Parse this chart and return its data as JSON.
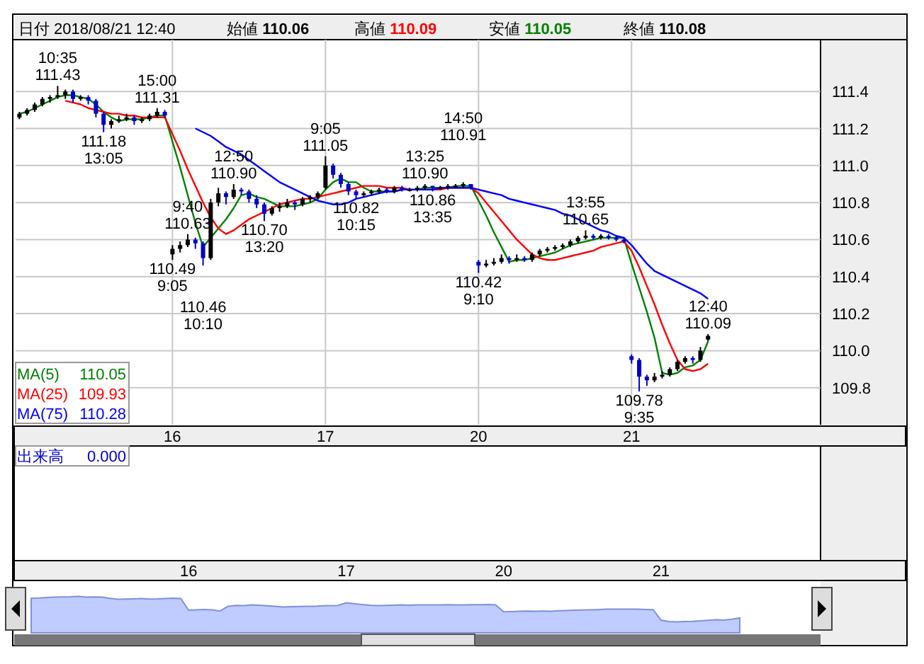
{
  "chart_data": {
    "type": "candlestick",
    "title": "日付 2018/08/21 12:40",
    "categories": [
      null,
      null,
      null,
      null,
      null,
      null,
      null,
      null,
      null,
      null,
      null,
      null,
      null,
      null,
      null,
      null,
      null,
      null,
      null,
      null,
      "16",
      null,
      null,
      null,
      null,
      null,
      null,
      null,
      null,
      null,
      null,
      null,
      null,
      null,
      null,
      null,
      null,
      null,
      null,
      null,
      "17",
      null,
      null,
      null,
      null,
      null,
      null,
      null,
      null,
      null,
      null,
      null,
      null,
      null,
      null,
      null,
      null,
      null,
      null,
      null,
      "20",
      null,
      null,
      null,
      null,
      null,
      null,
      null,
      null,
      null,
      null,
      null,
      null,
      null,
      null,
      null,
      null,
      null,
      null,
      null,
      "21",
      null,
      null,
      null,
      null,
      null,
      null,
      null,
      null,
      null,
      null
    ],
    "ohlc": [
      [
        111.26,
        111.29,
        111.25,
        111.28
      ],
      [
        111.28,
        111.31,
        111.27,
        111.3
      ],
      [
        111.3,
        111.34,
        111.29,
        111.33
      ],
      [
        111.33,
        111.37,
        111.32,
        111.36
      ],
      [
        111.36,
        111.38,
        111.34,
        111.37
      ],
      [
        111.37,
        111.43,
        111.36,
        111.38
      ],
      [
        111.38,
        111.41,
        111.36,
        111.4
      ],
      [
        111.4,
        111.41,
        111.34,
        111.36
      ],
      [
        111.36,
        111.38,
        111.35,
        111.37
      ],
      [
        111.37,
        111.38,
        111.33,
        111.35
      ],
      [
        111.35,
        111.36,
        111.26,
        111.28
      ],
      [
        111.28,
        111.29,
        111.18,
        111.22
      ],
      [
        111.22,
        111.25,
        111.2,
        111.24
      ],
      [
        111.24,
        111.27,
        111.23,
        111.25
      ],
      [
        111.25,
        111.28,
        111.24,
        111.26
      ],
      [
        111.26,
        111.27,
        111.22,
        111.24
      ],
      [
        111.24,
        111.26,
        111.23,
        111.25
      ],
      [
        111.25,
        111.28,
        111.24,
        111.27
      ],
      [
        111.27,
        111.31,
        111.26,
        111.29
      ],
      [
        111.29,
        111.3,
        111.26,
        111.27
      ],
      [
        110.52,
        110.57,
        110.49,
        110.55
      ],
      [
        110.55,
        110.59,
        110.53,
        110.57
      ],
      [
        110.57,
        110.63,
        110.56,
        110.6
      ],
      [
        110.6,
        110.61,
        110.55,
        110.58
      ],
      [
        110.58,
        110.59,
        110.46,
        110.5
      ],
      [
        110.5,
        110.82,
        110.49,
        110.8
      ],
      [
        110.8,
        110.88,
        110.78,
        110.85
      ],
      [
        110.85,
        110.86,
        110.79,
        110.83
      ],
      [
        110.83,
        110.9,
        110.82,
        110.87
      ],
      [
        110.87,
        110.88,
        110.84,
        110.86
      ],
      [
        110.86,
        110.87,
        110.8,
        110.82
      ],
      [
        110.82,
        110.84,
        110.77,
        110.79
      ],
      [
        110.79,
        110.8,
        110.7,
        110.74
      ],
      [
        110.74,
        110.78,
        110.73,
        110.77
      ],
      [
        110.77,
        110.8,
        110.75,
        110.78
      ],
      [
        110.78,
        110.82,
        110.77,
        110.8
      ],
      [
        110.8,
        110.81,
        110.76,
        110.79
      ],
      [
        110.79,
        110.83,
        110.78,
        110.82
      ],
      [
        110.82,
        110.84,
        110.8,
        110.83
      ],
      [
        110.83,
        110.86,
        110.82,
        110.85
      ],
      [
        110.88,
        111.05,
        110.87,
        111.0
      ],
      [
        111.0,
        111.01,
        110.93,
        110.95
      ],
      [
        110.95,
        110.96,
        110.88,
        110.9
      ],
      [
        110.9,
        110.91,
        110.84,
        110.86
      ],
      [
        110.86,
        110.87,
        110.82,
        110.84
      ],
      [
        110.84,
        110.86,
        110.83,
        110.85
      ],
      [
        110.85,
        110.87,
        110.84,
        110.86
      ],
      [
        110.86,
        110.88,
        110.85,
        110.87
      ],
      [
        110.87,
        110.88,
        110.85,
        110.86
      ],
      [
        110.86,
        110.89,
        110.85,
        110.88
      ],
      [
        110.88,
        110.89,
        110.86,
        110.87
      ],
      [
        110.87,
        110.88,
        110.86,
        110.87
      ],
      [
        110.87,
        110.89,
        110.86,
        110.88
      ],
      [
        110.88,
        110.9,
        110.87,
        110.89
      ],
      [
        110.89,
        110.89,
        110.86,
        110.88
      ],
      [
        110.88,
        110.89,
        110.87,
        110.88
      ],
      [
        110.88,
        110.9,
        110.87,
        110.89
      ],
      [
        110.89,
        110.9,
        110.88,
        110.89
      ],
      [
        110.89,
        110.91,
        110.88,
        110.9
      ],
      [
        110.9,
        110.9,
        110.87,
        110.88
      ],
      [
        110.48,
        110.49,
        110.42,
        110.46
      ],
      [
        110.46,
        110.49,
        110.45,
        110.47
      ],
      [
        110.47,
        110.5,
        110.46,
        110.48
      ],
      [
        110.48,
        110.52,
        110.47,
        110.5
      ],
      [
        110.5,
        110.51,
        110.47,
        110.49
      ],
      [
        110.49,
        110.52,
        110.48,
        110.5
      ],
      [
        110.5,
        110.51,
        110.48,
        110.49
      ],
      [
        110.49,
        110.53,
        110.48,
        110.52
      ],
      [
        110.52,
        110.55,
        110.51,
        110.54
      ],
      [
        110.54,
        110.56,
        110.53,
        110.55
      ],
      [
        110.55,
        110.57,
        110.54,
        110.56
      ],
      [
        110.56,
        110.58,
        110.55,
        110.57
      ],
      [
        110.57,
        110.6,
        110.56,
        110.59
      ],
      [
        110.59,
        110.62,
        110.58,
        110.61
      ],
      [
        110.61,
        110.65,
        110.6,
        110.62
      ],
      [
        110.62,
        110.63,
        110.6,
        110.61
      ],
      [
        110.61,
        110.63,
        110.6,
        110.62
      ],
      [
        110.62,
        110.63,
        110.6,
        110.61
      ],
      [
        110.61,
        110.62,
        110.59,
        110.6
      ],
      [
        110.6,
        110.61,
        110.58,
        110.59
      ],
      [
        109.97,
        109.98,
        109.93,
        109.95
      ],
      [
        109.95,
        109.96,
        109.78,
        109.86
      ],
      [
        109.86,
        109.87,
        109.81,
        109.84
      ],
      [
        109.84,
        109.88,
        109.83,
        109.86
      ],
      [
        109.86,
        109.89,
        109.85,
        109.87
      ],
      [
        109.87,
        109.91,
        109.86,
        109.9
      ],
      [
        109.9,
        109.95,
        109.89,
        109.94
      ],
      [
        109.94,
        109.97,
        109.93,
        109.96
      ],
      [
        109.96,
        109.97,
        109.93,
        109.95
      ],
      [
        109.95,
        110.02,
        109.94,
        110.0
      ],
      [
        110.06,
        110.09,
        110.05,
        110.08
      ]
    ],
    "series": [
      {
        "name": "MA(5)",
        "type": "line",
        "color": "#008000",
        "values": [
          111.28,
          111.29,
          111.31,
          111.33,
          111.35,
          111.37,
          111.38,
          111.38,
          111.37,
          111.36,
          111.33,
          111.29,
          111.26,
          111.24,
          111.25,
          111.25,
          111.25,
          111.26,
          111.27,
          111.27,
          111.13,
          110.99,
          110.84,
          110.69,
          110.56,
          110.61,
          110.66,
          110.71,
          110.77,
          110.84,
          110.85,
          110.83,
          110.82,
          110.8,
          110.78,
          110.78,
          110.78,
          110.79,
          110.8,
          110.82,
          110.87,
          110.91,
          110.93,
          110.91,
          110.91,
          110.88,
          110.86,
          110.86,
          110.86,
          110.86,
          110.87,
          110.87,
          110.87,
          110.88,
          110.88,
          110.88,
          110.88,
          110.89,
          110.89,
          110.89,
          110.81,
          110.73,
          110.64,
          110.56,
          110.48,
          110.49,
          110.49,
          110.5,
          110.51,
          110.52,
          110.53,
          110.55,
          110.57,
          110.58,
          110.59,
          110.6,
          110.61,
          110.61,
          110.61,
          110.61,
          110.47,
          110.34,
          110.21,
          110.07,
          109.88,
          109.87,
          109.88,
          109.91,
          109.92,
          109.95,
          110.05
        ]
      },
      {
        "name": "MA(25)",
        "type": "line",
        "color": "#ff0000",
        "values": [
          null,
          null,
          null,
          null,
          null,
          null,
          111.35,
          111.34,
          111.33,
          111.31,
          111.3,
          111.29,
          111.28,
          111.28,
          111.27,
          111.27,
          111.26,
          111.26,
          111.26,
          111.26,
          111.17,
          111.08,
          110.98,
          110.89,
          110.8,
          110.72,
          110.66,
          110.63,
          110.65,
          110.68,
          110.71,
          110.73,
          110.75,
          110.77,
          110.79,
          110.8,
          110.81,
          110.82,
          110.82,
          110.83,
          110.84,
          110.85,
          110.86,
          110.87,
          110.88,
          110.89,
          110.89,
          110.89,
          110.88,
          110.88,
          110.88,
          110.87,
          110.87,
          110.87,
          110.87,
          110.87,
          110.88,
          110.88,
          110.88,
          110.88,
          110.85,
          110.8,
          110.75,
          110.7,
          110.65,
          110.6,
          110.56,
          110.52,
          110.5,
          110.49,
          110.49,
          110.5,
          110.51,
          110.52,
          110.53,
          110.54,
          110.56,
          110.57,
          110.58,
          110.59,
          110.54,
          110.45,
          110.35,
          110.25,
          110.14,
          110.04,
          109.95,
          109.9,
          109.89,
          109.9,
          109.93
        ]
      },
      {
        "name": "MA(75)",
        "type": "line",
        "color": "#0000ff",
        "values": [
          null,
          null,
          null,
          null,
          null,
          null,
          null,
          null,
          null,
          null,
          null,
          null,
          null,
          null,
          null,
          null,
          null,
          null,
          null,
          null,
          null,
          null,
          null,
          111.2,
          111.18,
          111.16,
          111.13,
          111.1,
          111.08,
          111.06,
          111.03,
          111.0,
          110.97,
          110.94,
          110.91,
          110.89,
          110.87,
          110.85,
          110.83,
          110.81,
          110.8,
          110.79,
          110.79,
          110.8,
          110.82,
          110.83,
          110.84,
          110.85,
          110.86,
          110.86,
          110.87,
          110.87,
          110.87,
          110.87,
          110.87,
          110.88,
          110.88,
          110.88,
          110.88,
          110.88,
          110.87,
          110.86,
          110.85,
          110.84,
          110.82,
          110.81,
          110.8,
          110.79,
          110.78,
          110.77,
          110.76,
          110.74,
          110.73,
          110.71,
          110.69,
          110.67,
          110.65,
          110.64,
          110.62,
          110.61,
          110.57,
          110.52,
          110.47,
          110.43,
          110.41,
          110.39,
          110.37,
          110.35,
          110.33,
          110.31,
          110.28
        ]
      }
    ],
    "ylim": [
      109.6,
      111.68
    ],
    "yticks": [
      109.8,
      {
        "value": 110,
        "label": "110.0"
      },
      110.2,
      110.4,
      110.6,
      110.8,
      {
        "value": 111,
        "label": "111.0"
      },
      111.2,
      111.4
    ],
    "grid": true,
    "legend": "bottom left",
    "annotations": [
      "始値 110.06",
      "高値 110.09",
      "安値 110.05",
      "終値 110.08",
      "出来高 0.000",
      "110.05",
      "109.93",
      "110.28",
      {
        "text": "10:35\n111.43",
        "y": 111.43
      },
      {
        "text": "111.18\n13:05",
        "y": 111.18
      },
      {
        "text": "15:00\n111.31",
        "y": 111.31
      },
      {
        "text": "110.49\n9:05",
        "y": 110.49
      },
      {
        "text": "9:40\n110.63",
        "y": 110.63
      },
      {
        "text": "110.46\n10:10",
        "y": 110.46
      },
      {
        "text": "12:50\n110.90",
        "y": 110.9
      },
      {
        "text": "110.70\n13:20",
        "y": 110.7
      },
      {
        "text": "9:05\n111.05",
        "y": 111.05
      },
      {
        "text": "110.82\n10:15",
        "y": 110.82
      },
      {
        "text": "13:25\n110.90",
        "y": 110.9
      },
      {
        "text": "110.86\n13:35",
        "y": 110.86
      },
      {
        "text": "14:50\n110.91",
        "y": 110.91
      },
      {
        "text": "110.42\n9:10",
        "y": 110.42
      },
      {
        "text": "13:55\n110.65",
        "y": 110.65
      },
      {
        "text": "109.78\n9:35",
        "y": 109.78
      },
      {
        "text": "12:40\n110.09",
        "y": 110.09
      }
    ]
  }
}
